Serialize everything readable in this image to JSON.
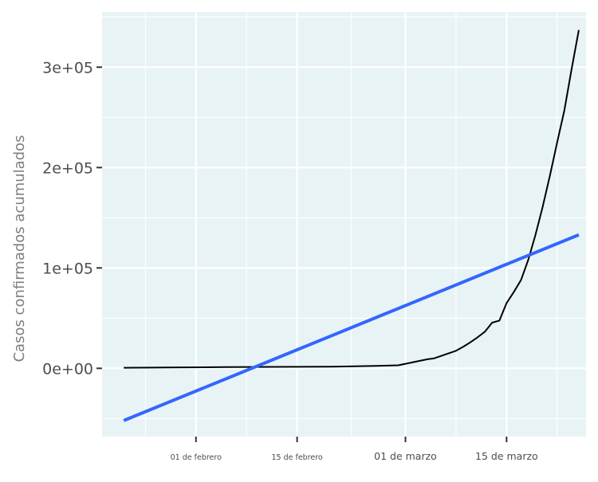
{
  "chart_data": {
    "type": "line",
    "title": "",
    "xlabel": "",
    "ylabel": "Casos confirmados acumulados",
    "x_type": "date",
    "xlim": [
      "2020-01-19",
      "2020-03-26"
    ],
    "ylim": [
      -68000,
      355000
    ],
    "y_ticks": [
      {
        "value": 0,
        "label": "0e+00"
      },
      {
        "value": 100000,
        "label": "1e+05"
      },
      {
        "value": 200000,
        "label": "2e+05"
      },
      {
        "value": 300000,
        "label": "3e+05"
      }
    ],
    "x_ticks": [
      {
        "date": "2020-02-01",
        "label": "01 de febrero",
        "size": "small"
      },
      {
        "date": "2020-02-15",
        "label": "15 de febrero",
        "size": "small"
      },
      {
        "date": "2020-03-01",
        "label": "01 de marzo",
        "size": "big"
      },
      {
        "date": "2020-03-15",
        "label": "15 de marzo",
        "size": "big"
      }
    ],
    "grid": true,
    "background": "#e8f3f5",
    "series": [
      {
        "kind": "data-line",
        "color": "#000000",
        "points": [
          {
            "x": "2020-01-22",
            "y": 555
          },
          {
            "x": "2020-01-28",
            "y": 800
          },
          {
            "x": "2020-02-05",
            "y": 1200
          },
          {
            "x": "2020-02-12",
            "y": 1400
          },
          {
            "x": "2020-02-20",
            "y": 1600
          },
          {
            "x": "2020-02-26",
            "y": 2400
          },
          {
            "x": "2020-02-29",
            "y": 3000
          },
          {
            "x": "2020-03-02",
            "y": 6000
          },
          {
            "x": "2020-03-04",
            "y": 9000
          },
          {
            "x": "2020-03-05",
            "y": 10000
          },
          {
            "x": "2020-03-06",
            "y": 12500
          },
          {
            "x": "2020-03-07",
            "y": 15000
          },
          {
            "x": "2020-03-08",
            "y": 17500
          },
          {
            "x": "2020-03-09",
            "y": 21500
          },
          {
            "x": "2020-03-10",
            "y": 26000
          },
          {
            "x": "2020-03-11",
            "y": 31000
          },
          {
            "x": "2020-03-12",
            "y": 36500
          },
          {
            "x": "2020-03-13",
            "y": 45500
          },
          {
            "x": "2020-03-14",
            "y": 47500
          },
          {
            "x": "2020-03-15",
            "y": 65000
          },
          {
            "x": "2020-03-16",
            "y": 76000
          },
          {
            "x": "2020-03-17",
            "y": 88000
          },
          {
            "x": "2020-03-18",
            "y": 108000
          },
          {
            "x": "2020-03-19",
            "y": 133000
          },
          {
            "x": "2020-03-20",
            "y": 161000
          },
          {
            "x": "2020-03-21",
            "y": 192000
          },
          {
            "x": "2020-03-22",
            "y": 225000
          },
          {
            "x": "2020-03-23",
            "y": 257000
          },
          {
            "x": "2020-03-24",
            "y": 298000
          },
          {
            "x": "2020-03-25",
            "y": 337000
          }
        ]
      },
      {
        "kind": "linear-fit",
        "color": "#3366ff",
        "points": [
          {
            "x": "2020-01-22",
            "y": -52000
          },
          {
            "x": "2020-03-25",
            "y": 133000
          }
        ]
      }
    ]
  }
}
